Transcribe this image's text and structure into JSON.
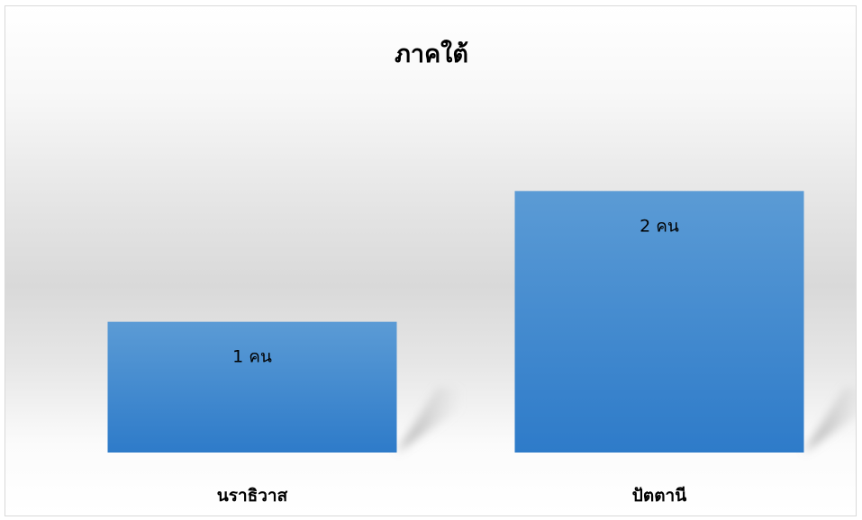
{
  "chart_data": {
    "type": "bar",
    "title": "ภาคใต้",
    "categories": [
      "นราธิวาส",
      "ปัตตานี"
    ],
    "values": [
      1,
      2
    ],
    "data_labels": [
      "1 คน",
      "2 คน"
    ],
    "xlabel": "",
    "ylabel": "",
    "ylim": [
      0,
      3
    ],
    "grid": false,
    "legend": "none",
    "colors": {
      "bar_top": "#5b9bd5",
      "bar_bottom": "#2e7bc9",
      "shadow": "#9a9a9a"
    }
  }
}
